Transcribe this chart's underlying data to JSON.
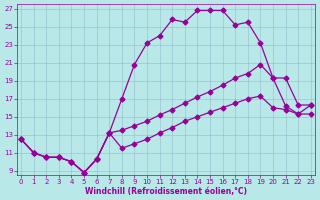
{
  "xlabel": "Windchill (Refroidissement éolien,°C)",
  "bg_color": "#b8e8e8",
  "line_color": "#990099",
  "grid_color": "#99bbcc",
  "xlim_min": 0,
  "xlim_max": 23,
  "ylim_min": 8.5,
  "ylim_max": 27.5,
  "xticks": [
    0,
    1,
    2,
    3,
    4,
    5,
    6,
    7,
    8,
    9,
    10,
    11,
    12,
    13,
    14,
    15,
    16,
    17,
    18,
    19,
    20,
    21,
    22,
    23
  ],
  "yticks": [
    9,
    11,
    13,
    15,
    17,
    19,
    21,
    23,
    25,
    27
  ],
  "curve1_x": [
    0,
    1,
    2,
    3,
    4,
    5,
    6,
    7,
    8,
    9,
    10,
    11,
    12,
    13,
    14,
    15,
    16,
    17,
    18,
    19,
    20,
    21,
    22,
    23
  ],
  "curve1_y": [
    12.5,
    11.0,
    10.5,
    10.5,
    10.0,
    8.8,
    10.3,
    13.2,
    17.0,
    20.8,
    23.2,
    24.0,
    25.8,
    25.5,
    26.8,
    26.8,
    26.8,
    25.2,
    25.5,
    23.2,
    19.3,
    16.2,
    15.3,
    16.3
  ],
  "curve2_x": [
    0,
    1,
    2,
    3,
    4,
    5,
    6,
    7,
    8,
    9,
    10,
    11,
    12,
    13,
    14,
    15,
    16,
    17,
    18,
    19,
    20,
    21,
    22,
    23
  ],
  "curve2_y": [
    12.5,
    11.0,
    10.5,
    10.5,
    10.0,
    8.8,
    10.3,
    13.2,
    13.5,
    14.0,
    14.5,
    15.2,
    15.8,
    16.5,
    17.2,
    17.8,
    18.5,
    19.3,
    19.8,
    20.8,
    19.3,
    19.3,
    16.3,
    16.3
  ],
  "curve3_x": [
    0,
    1,
    2,
    3,
    4,
    5,
    6,
    7,
    8,
    9,
    10,
    11,
    12,
    13,
    14,
    15,
    16,
    17,
    18,
    19,
    20,
    21,
    22,
    23
  ],
  "curve3_y": [
    12.5,
    11.0,
    10.5,
    10.5,
    10.0,
    8.8,
    10.3,
    13.2,
    11.5,
    12.0,
    12.5,
    13.2,
    13.8,
    14.5,
    15.0,
    15.5,
    16.0,
    16.5,
    17.0,
    17.3,
    16.0,
    15.8,
    15.3,
    15.3
  ],
  "marker": "D",
  "marker_size": 2.5,
  "linewidth": 0.9,
  "tick_fontsize": 5,
  "xlabel_fontsize": 5.5
}
